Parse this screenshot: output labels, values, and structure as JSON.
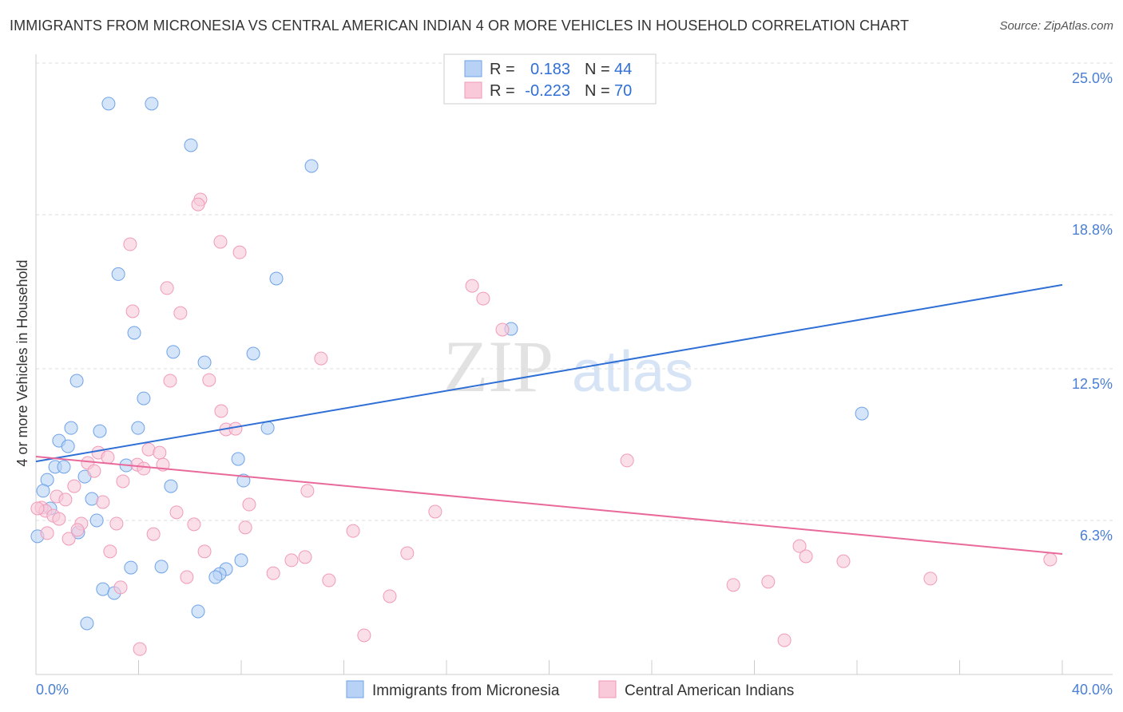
{
  "chart_data": {
    "type": "scatter",
    "title": "IMMIGRANTS FROM MICRONESIA VS CENTRAL AMERICAN INDIAN 4 OR MORE VEHICLES IN HOUSEHOLD CORRELATION CHART",
    "source": "Source: ZipAtlas.com",
    "ylabel": "4 or more Vehicles in Household",
    "xlim": [
      0,
      40
    ],
    "ylim": [
      0,
      25
    ],
    "x_tick_labels": [
      "0.0%",
      "40.0%"
    ],
    "y_ticks": [
      25.0,
      18.8,
      12.5,
      6.3
    ],
    "y_tick_labels": [
      "25.0%",
      "18.8%",
      "12.5%",
      "6.3%"
    ],
    "grid": true,
    "legend": {
      "position": "top-center",
      "entries": [
        {
          "r_label": "R =",
          "r": "0.183",
          "n_label": "N =",
          "n": "44"
        },
        {
          "r_label": "R =",
          "r": "-0.223",
          "n_label": "N =",
          "n": "70"
        }
      ]
    },
    "watermark": "ZIPatlas",
    "series": [
      {
        "name": "Immigrants from Micronesia",
        "color": "#6fa3e8",
        "fill": "#b8d2f5",
        "line_color": "#2f6fd6",
        "trend": [
          [
            0,
            8.71
          ],
          [
            40,
            15.93
          ]
        ],
        "points": [
          [
            2.83,
            23.34
          ],
          [
            4.51,
            23.34
          ],
          [
            6.04,
            21.64
          ],
          [
            10.74,
            20.79
          ],
          [
            3.21,
            16.37
          ],
          [
            9.37,
            16.19
          ],
          [
            3.83,
            13.97
          ],
          [
            18.52,
            14.13
          ],
          [
            5.35,
            13.19
          ],
          [
            8.47,
            13.12
          ],
          [
            6.57,
            12.76
          ],
          [
            1.59,
            12.01
          ],
          [
            4.2,
            11.29
          ],
          [
            32.19,
            10.67
          ],
          [
            1.37,
            10.08
          ],
          [
            2.49,
            9.95
          ],
          [
            3.98,
            10.08
          ],
          [
            9.03,
            10.08
          ],
          [
            0.9,
            9.56
          ],
          [
            1.25,
            9.33
          ],
          [
            7.88,
            8.81
          ],
          [
            0.75,
            8.49
          ],
          [
            1.09,
            8.49
          ],
          [
            3.52,
            8.55
          ],
          [
            0.44,
            7.96
          ],
          [
            1.9,
            8.09
          ],
          [
            8.09,
            7.93
          ],
          [
            5.26,
            7.7
          ],
          [
            0.28,
            7.51
          ],
          [
            2.18,
            7.18
          ],
          [
            0.56,
            6.79
          ],
          [
            2.37,
            6.3
          ],
          [
            1.65,
            5.81
          ],
          [
            0.06,
            5.65
          ],
          [
            8.0,
            4.67
          ],
          [
            3.7,
            4.37
          ],
          [
            4.89,
            4.41
          ],
          [
            7.41,
            4.31
          ],
          [
            7.16,
            4.11
          ],
          [
            7.0,
            3.98
          ],
          [
            2.61,
            3.49
          ],
          [
            3.05,
            3.33
          ],
          [
            6.32,
            2.58
          ],
          [
            1.99,
            2.09
          ]
        ]
      },
      {
        "name": "Central American Indians",
        "color": "#f09ab8",
        "fill": "#f9c9d9",
        "line_color": "#e8699a",
        "trend": [
          [
            0,
            8.91
          ],
          [
            40,
            4.93
          ]
        ],
        "points": [
          [
            6.41,
            19.42
          ],
          [
            6.32,
            19.22
          ],
          [
            3.67,
            17.59
          ],
          [
            7.19,
            17.69
          ],
          [
            7.94,
            17.26
          ],
          [
            5.11,
            15.8
          ],
          [
            17.0,
            15.89
          ],
          [
            17.43,
            15.37
          ],
          [
            3.77,
            14.85
          ],
          [
            5.63,
            14.78
          ],
          [
            18.18,
            14.1
          ],
          [
            11.11,
            12.92
          ],
          [
            5.23,
            12.01
          ],
          [
            6.75,
            12.04
          ],
          [
            7.22,
            10.77
          ],
          [
            7.41,
            10.02
          ],
          [
            7.78,
            10.05
          ],
          [
            2.43,
            9.07
          ],
          [
            2.8,
            8.88
          ],
          [
            4.39,
            9.2
          ],
          [
            4.82,
            9.07
          ],
          [
            23.04,
            8.75
          ],
          [
            2.02,
            8.65
          ],
          [
            3.95,
            8.58
          ],
          [
            4.95,
            8.58
          ],
          [
            2.27,
            8.32
          ],
          [
            4.2,
            8.42
          ],
          [
            1.49,
            7.7
          ],
          [
            3.39,
            7.9
          ],
          [
            10.58,
            7.51
          ],
          [
            0.81,
            7.28
          ],
          [
            1.15,
            7.15
          ],
          [
            2.61,
            7.05
          ],
          [
            8.31,
            6.95
          ],
          [
            0.22,
            6.82
          ],
          [
            0.37,
            6.69
          ],
          [
            0.68,
            6.49
          ],
          [
            0.9,
            6.36
          ],
          [
            15.56,
            6.66
          ],
          [
            5.48,
            6.63
          ],
          [
            1.77,
            6.17
          ],
          [
            3.14,
            6.17
          ],
          [
            6.16,
            6.14
          ],
          [
            1.62,
            5.91
          ],
          [
            8.16,
            6.01
          ],
          [
            0.44,
            5.78
          ],
          [
            4.58,
            5.74
          ],
          [
            12.36,
            5.87
          ],
          [
            1.28,
            5.55
          ],
          [
            2.89,
            5.03
          ],
          [
            6.57,
            5.03
          ],
          [
            14.47,
            4.96
          ],
          [
            29.76,
            5.25
          ],
          [
            30.01,
            4.83
          ],
          [
            10.49,
            4.8
          ],
          [
            9.96,
            4.67
          ],
          [
            31.47,
            4.63
          ],
          [
            39.53,
            4.7
          ],
          [
            9.25,
            4.14
          ],
          [
            5.88,
            3.98
          ],
          [
            11.42,
            3.85
          ],
          [
            34.86,
            3.92
          ],
          [
            28.54,
            3.79
          ],
          [
            27.18,
            3.66
          ],
          [
            3.3,
            3.56
          ],
          [
            13.79,
            3.2
          ],
          [
            12.79,
            1.6
          ],
          [
            29.17,
            1.4
          ],
          [
            4.05,
            1.04
          ],
          [
            0.06,
            6.79
          ]
        ]
      }
    ]
  }
}
